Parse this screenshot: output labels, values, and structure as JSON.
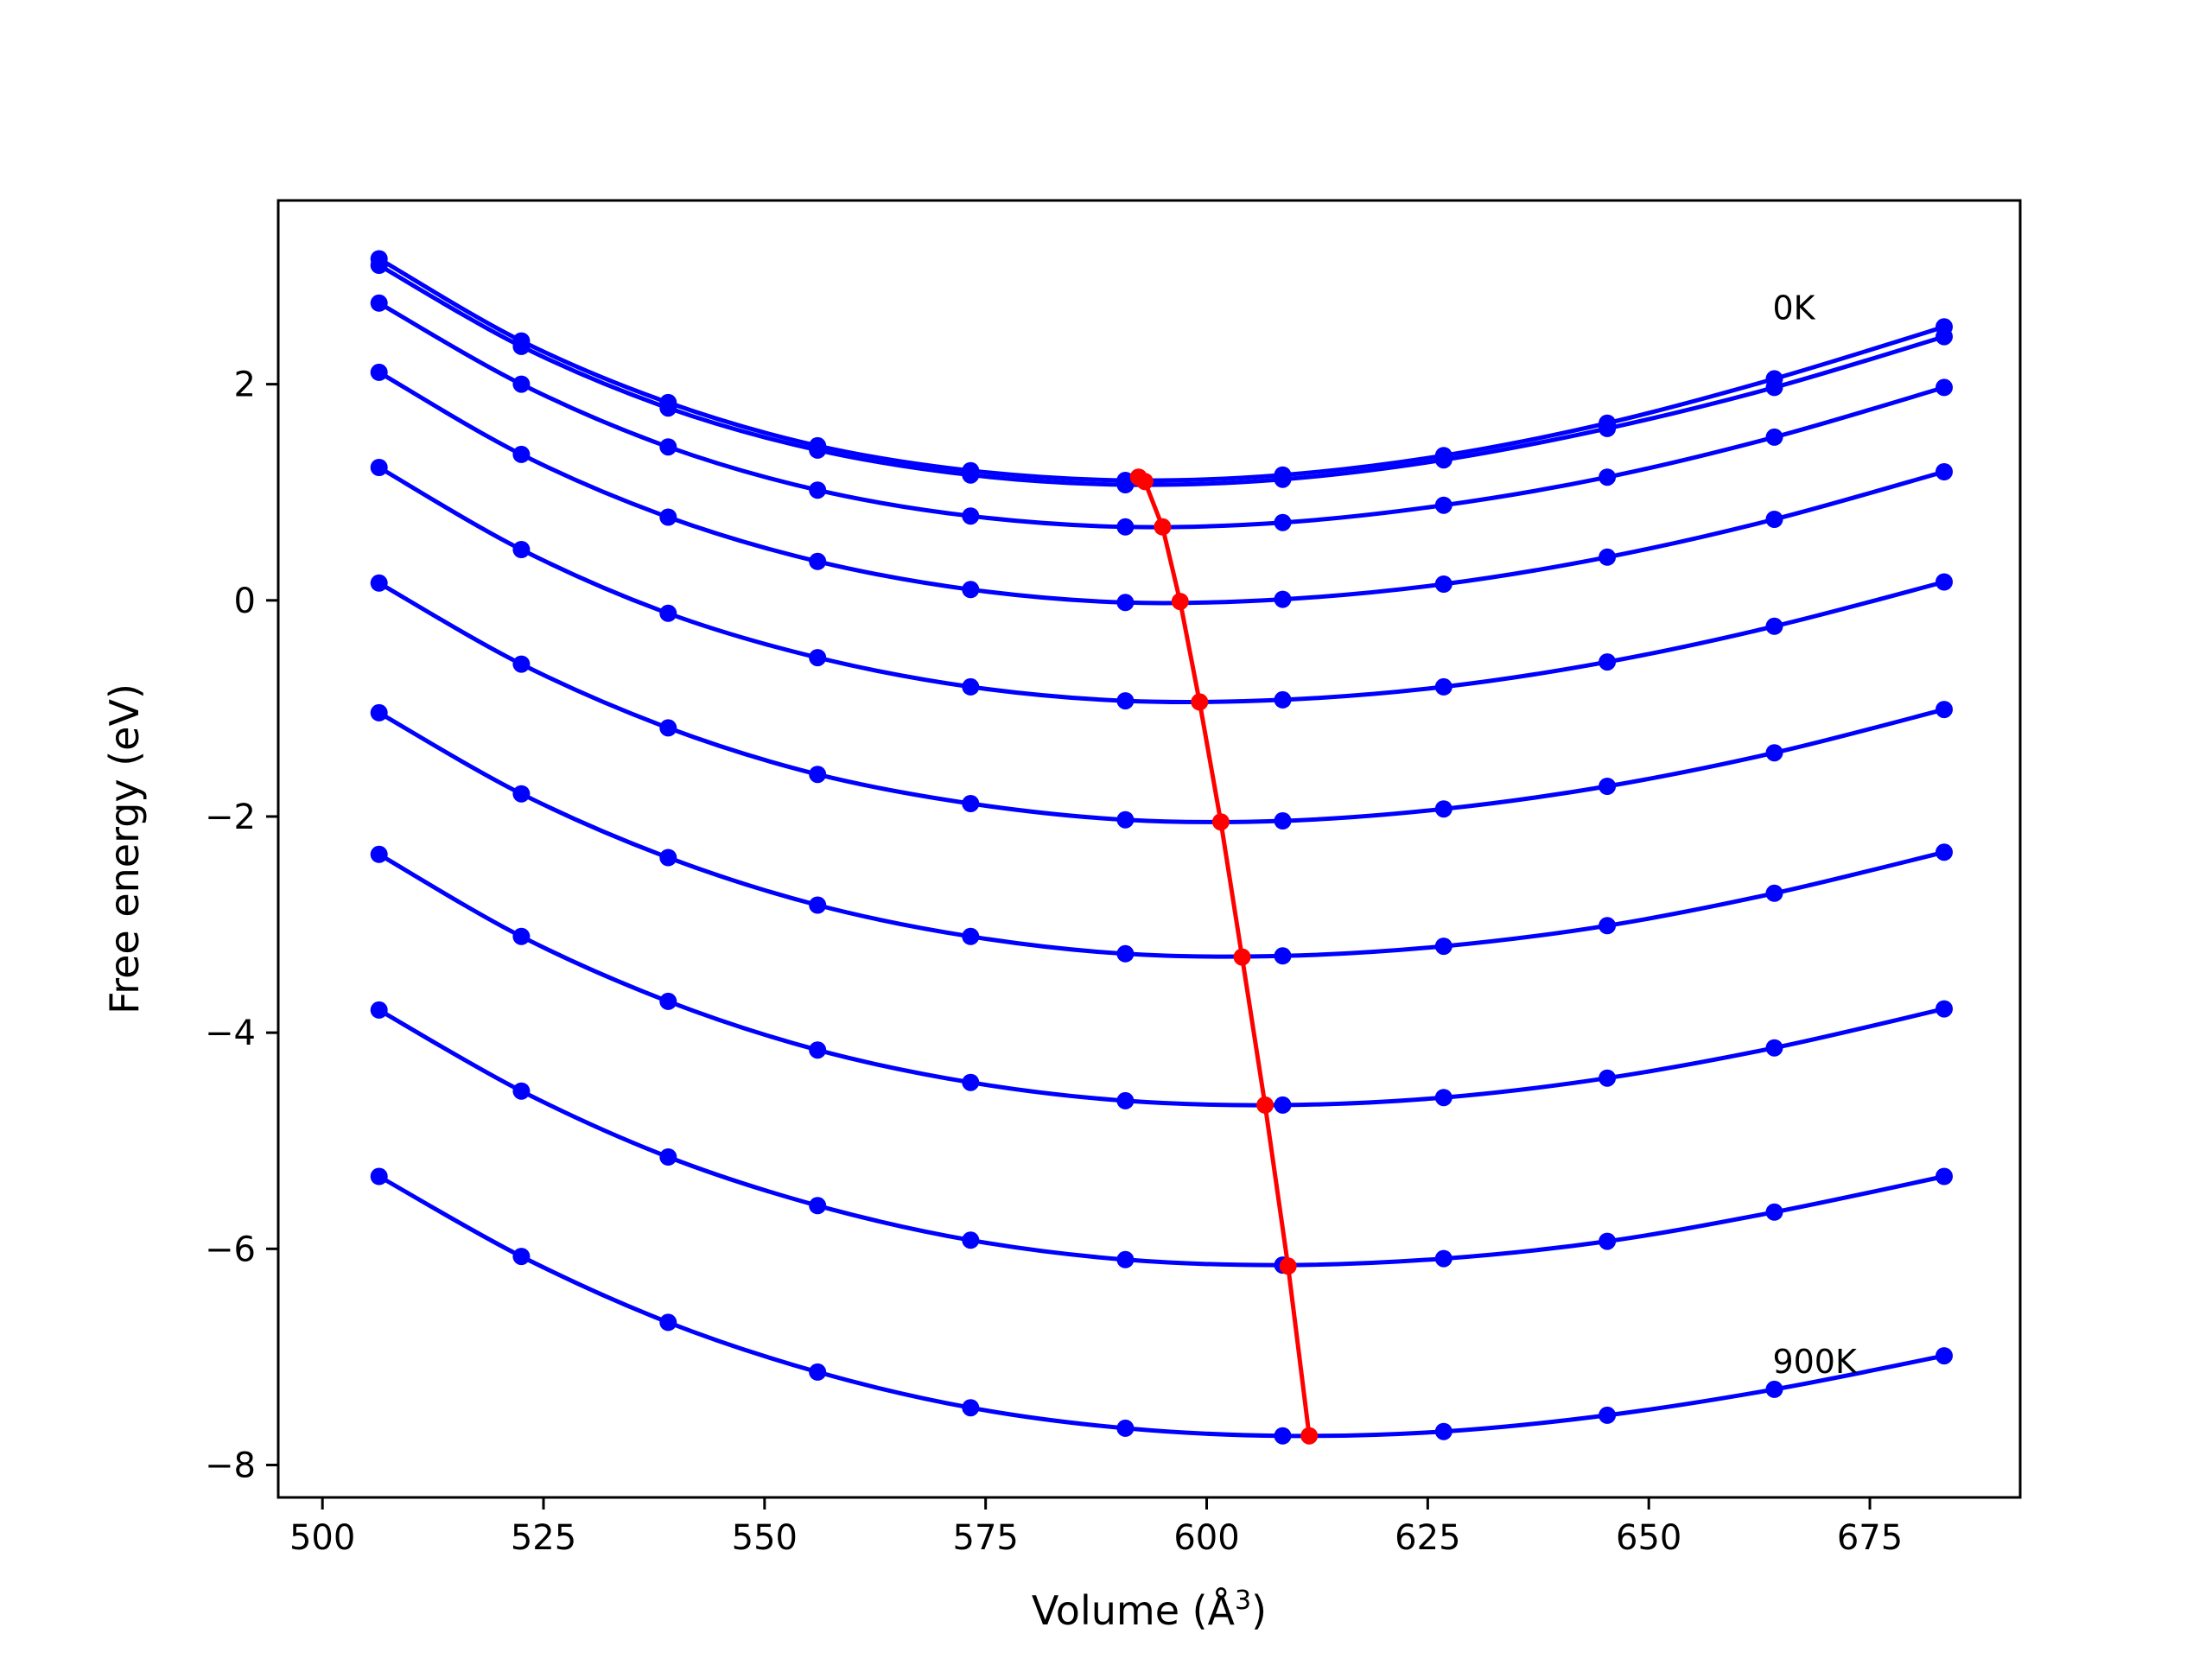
{
  "chart_data": {
    "type": "line",
    "xlabel": "Volume (Å",
    "xlabel_superscript": "3",
    "xlabel_suffix": ")",
    "ylabel": "Free energy (eV)",
    "xlim": [
      495,
      692
    ],
    "ylim": [
      -8.3,
      3.7
    ],
    "grid": false,
    "legend": "none",
    "xticks": [
      500,
      525,
      550,
      575,
      600,
      625,
      650,
      675
    ],
    "xtick_labels": [
      "500",
      "525",
      "550",
      "575",
      "600",
      "625",
      "650",
      "675"
    ],
    "yticks": [
      -8,
      -6,
      -4,
      -2,
      0,
      2
    ],
    "ytick_labels": [
      "−8",
      "−6",
      "−4",
      "−2",
      "0",
      "2"
    ],
    "annotations": [
      {
        "text": "0K",
        "x": 664,
        "y": 2.6
      },
      {
        "text": "900K",
        "x": 664,
        "y": -7.15
      }
    ],
    "colors": {
      "isotherm": "#0000ff",
      "minimum": "#ff0000",
      "axes": "#000000"
    },
    "x": [
      506.4,
      522.5,
      539.1,
      556.0,
      573.3,
      590.8,
      608.6,
      626.8,
      645.3,
      664.2,
      683.4
    ],
    "series": [
      {
        "values": [
          3.16,
          2.4,
          1.83,
          1.43,
          1.2,
          1.11,
          1.16,
          1.34,
          1.64,
          2.05,
          2.53
        ]
      },
      {
        "values": [
          3.1,
          2.35,
          1.78,
          1.39,
          1.16,
          1.07,
          1.12,
          1.3,
          1.59,
          1.97,
          2.44
        ]
      },
      {
        "values": [
          2.75,
          2.0,
          1.42,
          1.02,
          0.78,
          0.68,
          0.72,
          0.88,
          1.14,
          1.51,
          1.97
        ]
      },
      {
        "values": [
          2.11,
          1.35,
          0.77,
          0.36,
          0.1,
          -0.02,
          0.01,
          0.15,
          0.4,
          0.75,
          1.19
        ]
      },
      {
        "values": [
          1.23,
          0.47,
          -0.12,
          -0.53,
          -0.8,
          -0.93,
          -0.92,
          -0.8,
          -0.57,
          -0.24,
          0.17
        ]
      },
      {
        "values": [
          0.16,
          -0.59,
          -1.18,
          -1.61,
          -1.88,
          -2.03,
          -2.04,
          -1.93,
          -1.72,
          -1.41,
          -1.01
        ]
      },
      {
        "values": [
          -1.04,
          -1.79,
          -2.38,
          -2.82,
          -3.11,
          -3.27,
          -3.29,
          -3.2,
          -3.01,
          -2.71,
          -2.33
        ]
      },
      {
        "values": [
          -2.35,
          -3.11,
          -3.71,
          -4.16,
          -4.46,
          -4.63,
          -4.67,
          -4.6,
          -4.42,
          -4.14,
          -3.78
        ]
      },
      {
        "values": [
          -3.79,
          -4.54,
          -5.15,
          -5.6,
          -5.92,
          -6.1,
          -6.15,
          -6.09,
          -5.93,
          -5.66,
          -5.33
        ]
      },
      {
        "values": [
          -5.33,
          -6.07,
          -6.68,
          -7.14,
          -7.47,
          -7.66,
          -7.73,
          -7.69,
          -7.54,
          -7.3,
          -6.99
        ]
      }
    ],
    "minima": {
      "x": [
        592.3,
        593.0,
        595.0,
        597.0,
        599.2,
        601.6,
        604.0,
        606.6,
        609.2,
        611.6
      ],
      "y": [
        1.14,
        1.1,
        0.68,
        -0.01,
        -0.94,
        -2.05,
        -3.3,
        -4.67,
        -6.16,
        -7.73
      ]
    }
  }
}
